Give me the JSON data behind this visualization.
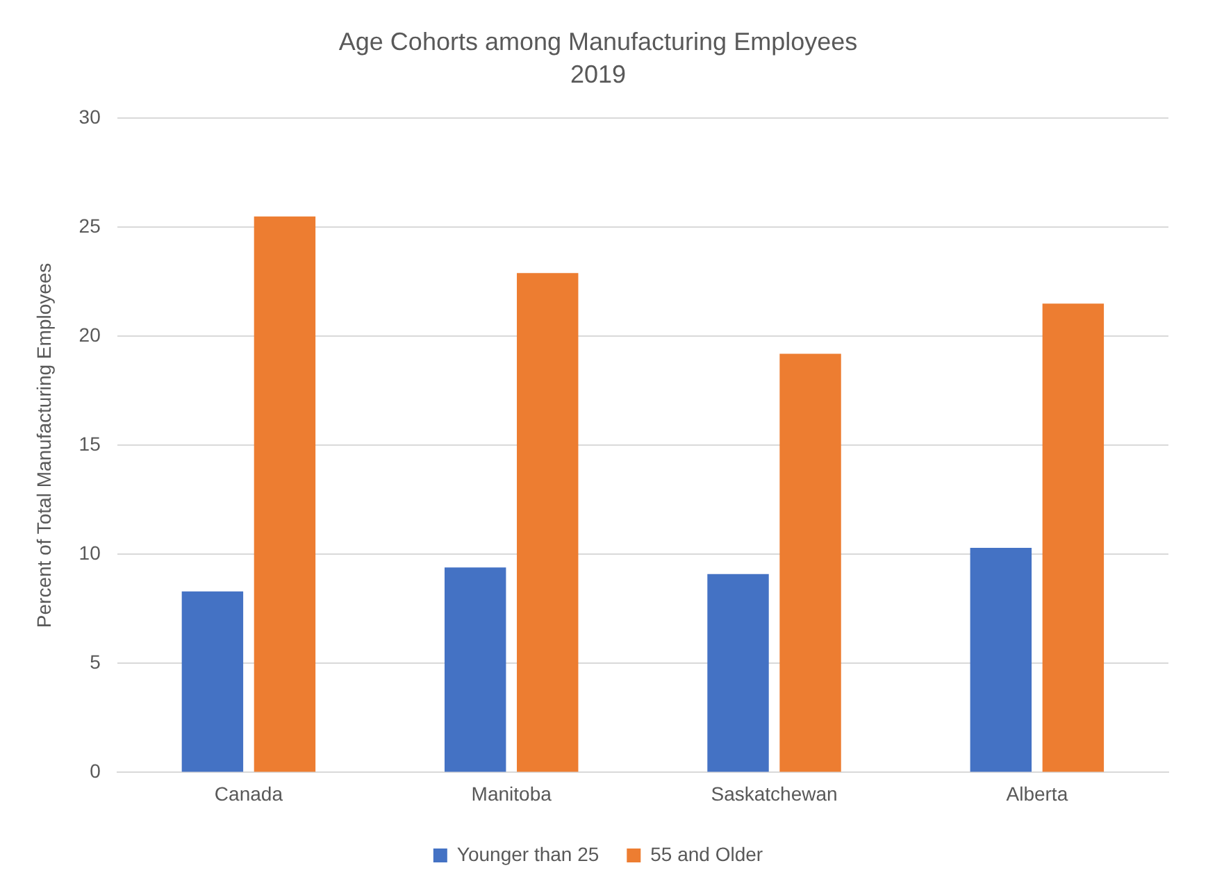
{
  "chart_data": {
    "type": "bar",
    "title": "Age Cohorts among Manufacturing Employees",
    "subtitle": "2019",
    "ylabel": "Percent of Total Manufacturing Employees",
    "categories": [
      "Canada",
      "Manitoba",
      "Saskatchewan",
      "Alberta"
    ],
    "series": [
      {
        "name": "Younger than 25",
        "color": "#4472c4",
        "values": [
          8.3,
          9.4,
          9.1,
          10.3
        ]
      },
      {
        "name": "55 and Older",
        "color": "#ed7d31",
        "values": [
          25.5,
          22.9,
          19.2,
          21.5
        ]
      }
    ],
    "ylim": [
      0,
      30
    ],
    "yticks": [
      0,
      5,
      10,
      15,
      20,
      25,
      30
    ],
    "grid": "y",
    "legend": "bottom"
  }
}
